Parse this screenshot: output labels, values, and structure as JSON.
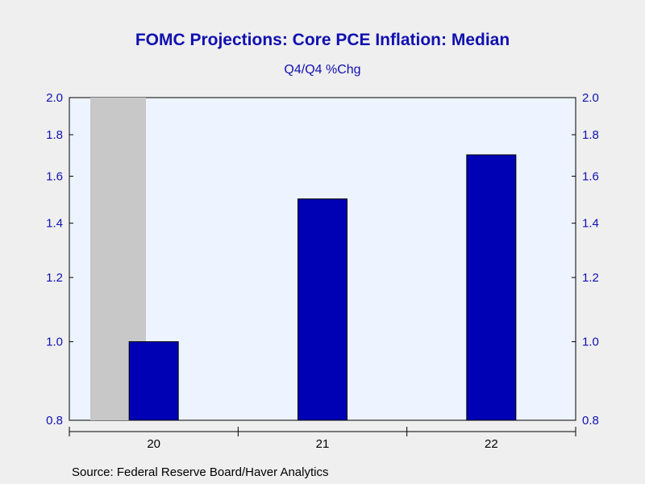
{
  "colors": {
    "background": "#efefef",
    "plot_background": "#eef4ff",
    "bar_fill": "#0000b4",
    "bar_stroke": "#000000",
    "recession_shade": "#c8c8c8",
    "text_blue": "#1010b0"
  },
  "chart_data": {
    "type": "bar",
    "title": "FOMC Projections: Core PCE Inflation: Median",
    "subtitle": "Q4/Q4 %Chg",
    "source": "Source:  Federal Reserve Board/Haver Analytics",
    "categories": [
      "20",
      "21",
      "22"
    ],
    "series": [
      {
        "values": [
          1.0,
          1.5,
          1.7
        ]
      }
    ],
    "y_scale": "log",
    "ylim": [
      0.8,
      2.0
    ],
    "yticks": [
      0.8,
      1.0,
      1.2,
      1.4,
      1.6,
      1.8,
      2.0
    ],
    "ytick_labels": [
      "0.8",
      "1.0",
      "1.2",
      "1.4",
      "1.6",
      "1.8",
      "2.0"
    ],
    "dual_y_axis": true,
    "shaded_region": "recession during early 20",
    "grid": false,
    "legend": "none"
  }
}
